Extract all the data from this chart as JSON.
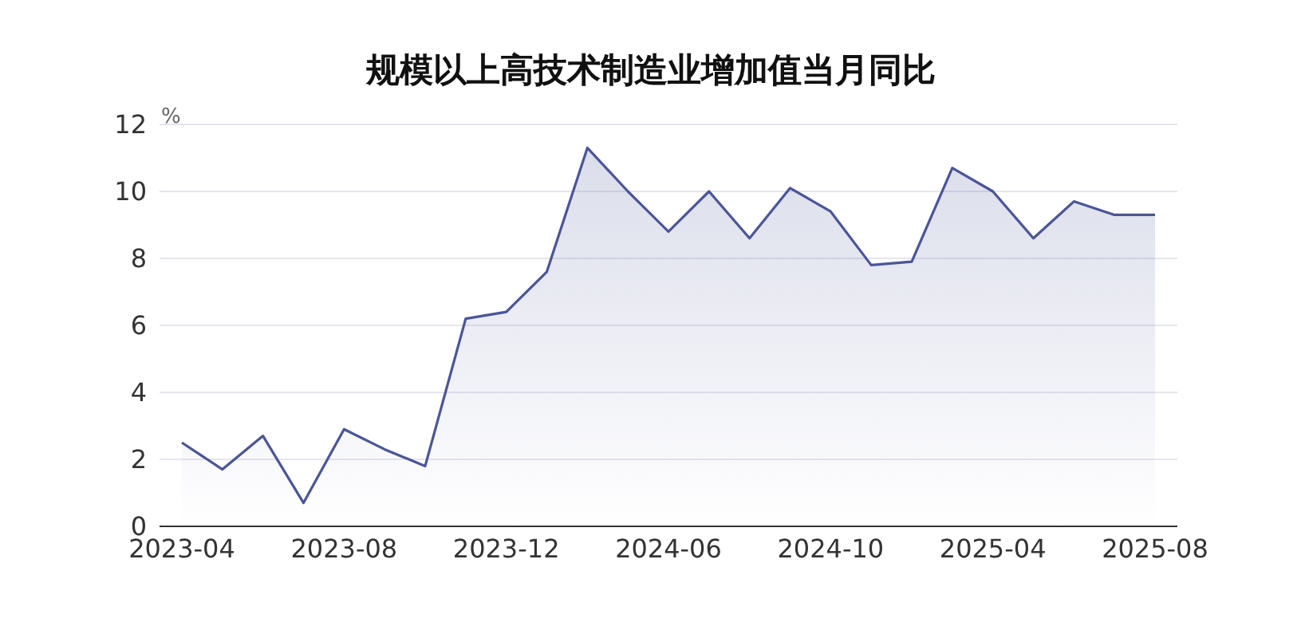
{
  "chart_data": {
    "type": "area",
    "title": "规模以上高技术制造业增加值当月同比",
    "ylabel": "%",
    "categories": [
      "2023-04",
      null,
      null,
      null,
      "2023-08",
      null,
      null,
      null,
      "2023-12",
      null,
      null,
      null,
      "2024-06",
      null,
      null,
      null,
      "2024-10",
      null,
      null,
      null,
      "2025-04",
      null,
      null,
      null,
      "2025-08"
    ],
    "series": [
      {
        "color": "#4a5599",
        "values": [
          2.5,
          1.7,
          2.7,
          0.7,
          2.9,
          2.3,
          1.8,
          6.2,
          6.4,
          7.6,
          11.3,
          10.0,
          8.8,
          10.0,
          8.6,
          10.1,
          9.4,
          7.8,
          7.9,
          10.7,
          10.0,
          8.6,
          9.7,
          9.3,
          9.3
        ]
      }
    ],
    "ylim": [
      0,
      12
    ],
    "yticks": [
      0,
      2,
      4,
      6,
      8,
      10,
      12
    ],
    "grid": "y",
    "legend": false
  }
}
